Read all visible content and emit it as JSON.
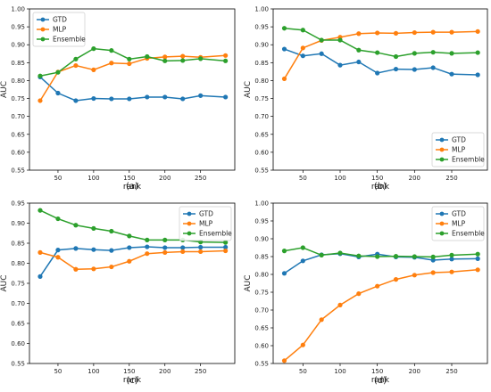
{
  "chart_data": [
    {
      "type": "line",
      "panel_label": "(a)",
      "xlabel": "rank",
      "ylabel": "AUC",
      "xlim": [
        10,
        298
      ],
      "ylim": [
        0.55,
        1.0
      ],
      "xticks": [
        50,
        100,
        150,
        200,
        250
      ],
      "yticks": [
        0.55,
        0.6,
        0.65,
        0.7,
        0.75,
        0.8,
        0.85,
        0.9,
        0.95,
        1.0
      ],
      "legend_position": "top-left",
      "x": [
        25,
        50,
        75,
        100,
        125,
        150,
        175,
        200,
        225,
        250,
        285
      ],
      "series": [
        {
          "name": "GTD",
          "color": "#1f77b4",
          "values": [
            0.81,
            0.765,
            0.744,
            0.75,
            0.749,
            0.749,
            0.754,
            0.754,
            0.749,
            0.758,
            0.754
          ]
        },
        {
          "name": "MLP",
          "color": "#ff7f0e",
          "values": [
            0.744,
            0.824,
            0.842,
            0.83,
            0.849,
            0.847,
            0.862,
            0.866,
            0.868,
            0.865,
            0.87
          ]
        },
        {
          "name": "Ensemble",
          "color": "#2ca02c",
          "values": [
            0.813,
            0.823,
            0.86,
            0.889,
            0.884,
            0.86,
            0.867,
            0.855,
            0.856,
            0.861,
            0.855
          ]
        }
      ]
    },
    {
      "type": "line",
      "panel_label": "(b)",
      "xlabel": "rank",
      "ylabel": "AUC",
      "xlim": [
        10,
        298
      ],
      "ylim": [
        0.55,
        1.0
      ],
      "xticks": [
        50,
        100,
        150,
        200,
        250
      ],
      "yticks": [
        0.55,
        0.6,
        0.65,
        0.7,
        0.75,
        0.8,
        0.85,
        0.9,
        0.95,
        1.0
      ],
      "legend_position": "bottom-right",
      "x": [
        25,
        50,
        75,
        100,
        125,
        150,
        175,
        200,
        225,
        250,
        285
      ],
      "series": [
        {
          "name": "GTD",
          "color": "#1f77b4",
          "values": [
            0.888,
            0.869,
            0.875,
            0.843,
            0.852,
            0.821,
            0.832,
            0.831,
            0.836,
            0.818,
            0.816
          ]
        },
        {
          "name": "MLP",
          "color": "#ff7f0e",
          "values": [
            0.805,
            0.891,
            0.912,
            0.921,
            0.931,
            0.933,
            0.932,
            0.934,
            0.935,
            0.935,
            0.937
          ]
        },
        {
          "name": "Ensemble",
          "color": "#2ca02c",
          "values": [
            0.946,
            0.941,
            0.913,
            0.913,
            0.885,
            0.878,
            0.867,
            0.876,
            0.879,
            0.876,
            0.878
          ]
        }
      ]
    },
    {
      "type": "line",
      "panel_label": "(c)",
      "xlabel": "rank",
      "ylabel": "AUC",
      "xlim": [
        10,
        298
      ],
      "ylim": [
        0.55,
        0.95
      ],
      "xticks": [
        50,
        100,
        150,
        200,
        250
      ],
      "yticks": [
        0.55,
        0.6,
        0.65,
        0.7,
        0.75,
        0.8,
        0.85,
        0.9,
        0.95
      ],
      "legend_position": "top-right",
      "x": [
        25,
        50,
        75,
        100,
        125,
        150,
        175,
        200,
        225,
        250,
        285
      ],
      "series": [
        {
          "name": "GTD",
          "color": "#1f77b4",
          "values": [
            0.767,
            0.833,
            0.837,
            0.834,
            0.832,
            0.839,
            0.841,
            0.839,
            0.839,
            0.84,
            0.84
          ]
        },
        {
          "name": "MLP",
          "color": "#ff7f0e",
          "values": [
            0.827,
            0.815,
            0.785,
            0.786,
            0.791,
            0.805,
            0.824,
            0.827,
            0.829,
            0.829,
            0.831
          ]
        },
        {
          "name": "Ensemble",
          "color": "#2ca02c",
          "values": [
            0.932,
            0.911,
            0.895,
            0.887,
            0.88,
            0.868,
            0.858,
            0.858,
            0.858,
            0.853,
            0.852
          ]
        }
      ]
    },
    {
      "type": "line",
      "panel_label": "(d)",
      "xlabel": "rank",
      "ylabel": "AUC",
      "xlim": [
        10,
        298
      ],
      "ylim": [
        0.55,
        1.0
      ],
      "xticks": [
        50,
        100,
        150,
        200,
        250
      ],
      "yticks": [
        0.55,
        0.6,
        0.65,
        0.7,
        0.75,
        0.8,
        0.85,
        0.9,
        0.95,
        1.0
      ],
      "legend_position": "top-right",
      "x": [
        25,
        50,
        75,
        100,
        125,
        150,
        175,
        200,
        225,
        250,
        285
      ],
      "series": [
        {
          "name": "GTD",
          "color": "#1f77b4",
          "values": [
            0.803,
            0.838,
            0.855,
            0.858,
            0.849,
            0.857,
            0.849,
            0.848,
            0.84,
            0.843,
            0.844
          ]
        },
        {
          "name": "MLP",
          "color": "#ff7f0e",
          "values": [
            0.558,
            0.602,
            0.673,
            0.714,
            0.746,
            0.767,
            0.786,
            0.798,
            0.805,
            0.807,
            0.813
          ]
        },
        {
          "name": "Ensemble",
          "color": "#2ca02c",
          "values": [
            0.866,
            0.875,
            0.854,
            0.86,
            0.852,
            0.85,
            0.851,
            0.85,
            0.849,
            0.854,
            0.857
          ]
        }
      ]
    }
  ]
}
